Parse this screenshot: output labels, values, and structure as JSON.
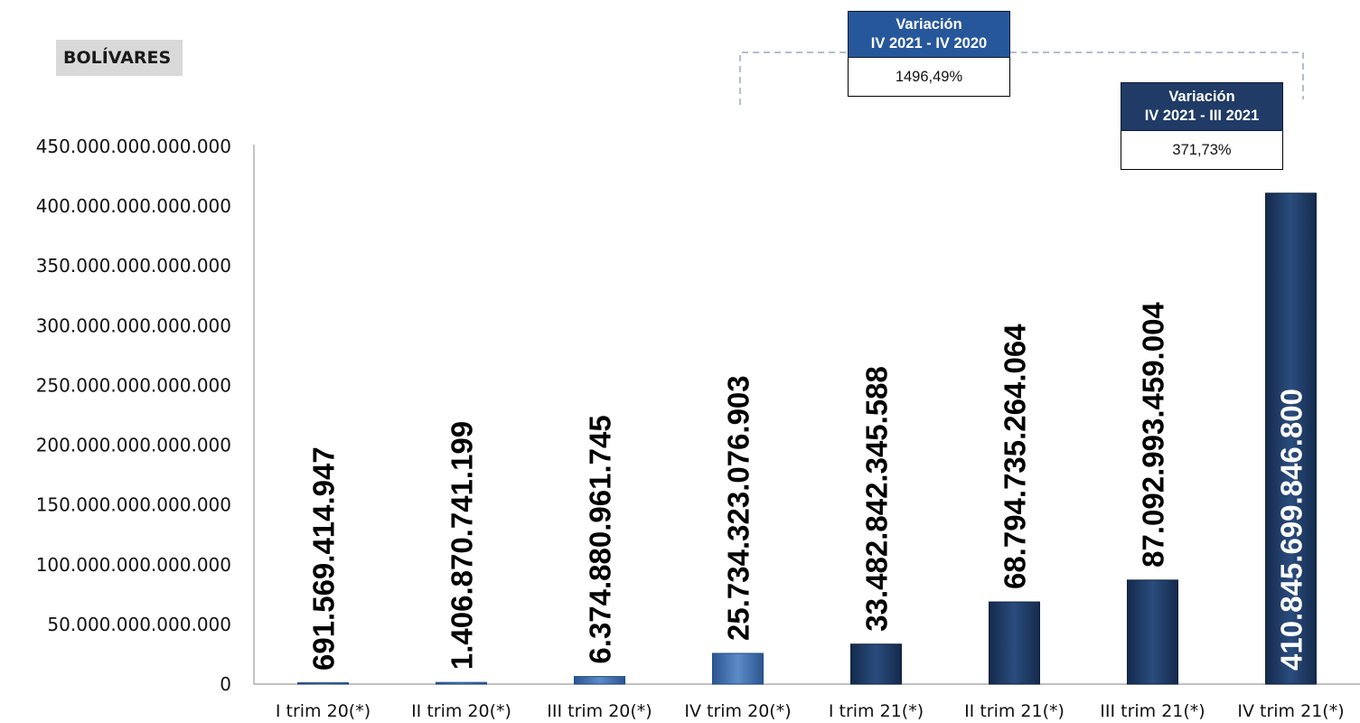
{
  "unit_label": "BOLÍVARES",
  "variation_boxes": [
    {
      "title_line1": "Variación",
      "title_line2": "IV 2021 - IV 2020",
      "value": "1496,49%"
    },
    {
      "title_line1": "Variación",
      "title_line2": "IV 2021 - III 2021",
      "value": "371,73%"
    }
  ],
  "colors": {
    "bar_light": "#3f6fb0",
    "bar_dark": "#1e3a64",
    "axis": "#9a9a9a",
    "bracket": "#9aa8bd"
  },
  "chart_data": {
    "type": "bar",
    "categories": [
      "I trim 20(*)",
      "II trim 20(*)",
      "III trim 20(*)",
      "IV trim 20(*)",
      "I trim 21(*)",
      "II trim 21(*)",
      "III trim 21(*)",
      "IV trim 21(*)"
    ],
    "values": [
      691569414947,
      1406870741199,
      6374880961745,
      25734323076903,
      33482842345588,
      68794735264064,
      87092993459004,
      410845699846800
    ],
    "data_labels": [
      "691.569.414.947",
      "1.406.870.741.199",
      "6.374.880.961.745",
      "25.734.323.076.903",
      "33.482.842.345.588",
      "68.794.735.264.064",
      "87.092.993.459.004",
      "410.845.699.846.800"
    ],
    "bar_shades": [
      "light",
      "light",
      "light",
      "light",
      "dark",
      "dark",
      "dark",
      "dark"
    ],
    "ylim": [
      0,
      450000000000000
    ],
    "yticks": [
      0,
      50000000000000,
      100000000000000,
      150000000000000,
      200000000000000,
      250000000000000,
      300000000000000,
      350000000000000,
      400000000000000,
      450000000000000
    ],
    "ytick_labels": [
      "0",
      "50.000.000.000.000",
      "100.000.000.000.000",
      "150.000.000.000.000",
      "200.000.000.000.000",
      "250.000.000.000.000",
      "300.000.000.000.000",
      "350.000.000.000.000",
      "400.000.000.000.000",
      "450.000.000.000.000"
    ],
    "grid": false,
    "legend": "none"
  }
}
